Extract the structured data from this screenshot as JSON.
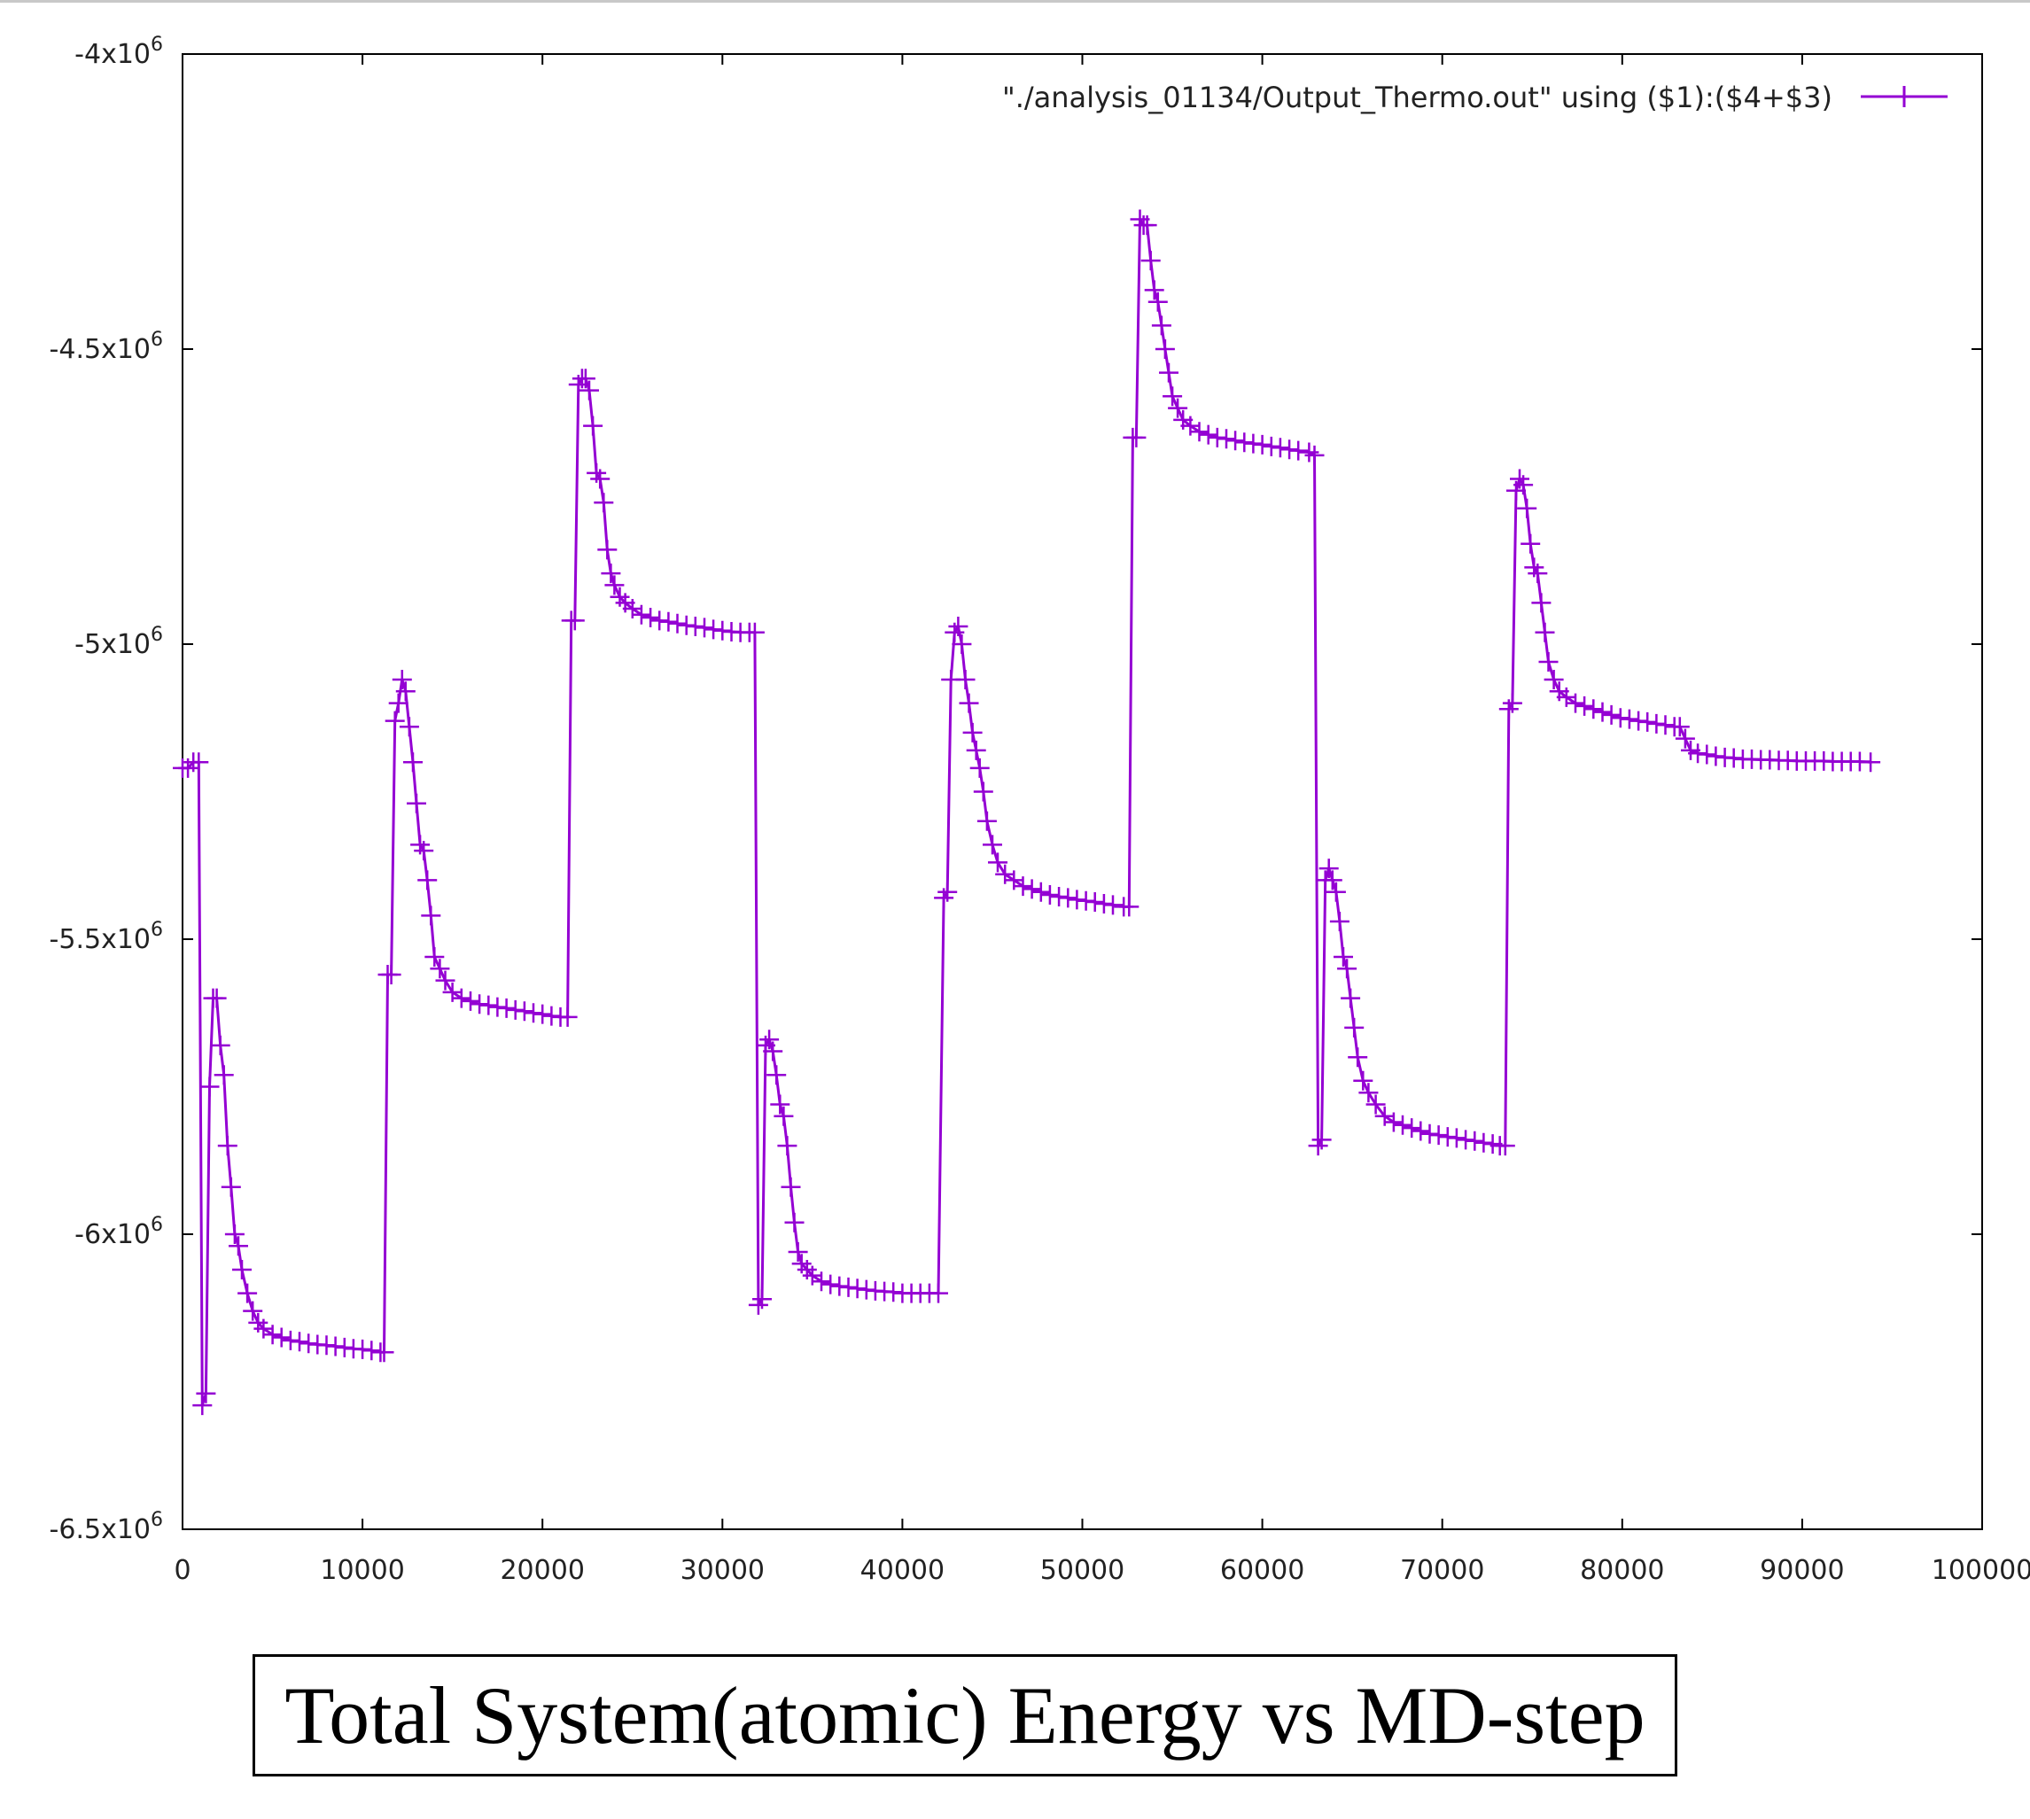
{
  "caption": "Total System(atomic) Energy vs MD-step",
  "chart_data": {
    "type": "line",
    "title": "",
    "xlabel": "",
    "ylabel": "",
    "xlim": [
      0,
      100000
    ],
    "ylim": [
      -6500000,
      -4000000
    ],
    "x_ticks": [
      0,
      10000,
      20000,
      30000,
      40000,
      50000,
      60000,
      70000,
      80000,
      90000,
      100000
    ],
    "x_tick_labels": [
      "0",
      "10000",
      "20000",
      "30000",
      "40000",
      "50000",
      "60000",
      "70000",
      "80000",
      "90000",
      "100000"
    ],
    "y_ticks": [
      -6500000,
      -6000000,
      -5500000,
      -5000000,
      -4500000,
      -4000000
    ],
    "y_tick_labels": [
      {
        "mantissa": "-6.5x10",
        "exp": "6"
      },
      {
        "mantissa": "-6x10",
        "exp": "6"
      },
      {
        "mantissa": "-5.5x10",
        "exp": "6"
      },
      {
        "mantissa": "-5x10",
        "exp": "6"
      },
      {
        "mantissa": "-4.5x10",
        "exp": "6"
      },
      {
        "mantissa": "-4x10",
        "exp": "6"
      }
    ],
    "grid": false,
    "legend_position": "top-right",
    "series": [
      {
        "name": "\"./analysis_01134/Output_Thermo.out\" using ($1):($4+$3)",
        "color": "#9400d3",
        "marker": "plus",
        "x": [
          0,
          300,
          600,
          900,
          1100,
          1300,
          1500,
          1700,
          1900,
          2100,
          2300,
          2500,
          2700,
          2900,
          3100,
          3300,
          3600,
          3900,
          4200,
          4500,
          5000,
          5500,
          6000,
          6500,
          7000,
          7500,
          8000,
          8500,
          9000,
          9500,
          10000,
          10500,
          11000,
          11200,
          11400,
          11600,
          11800,
          12000,
          12200,
          12400,
          12600,
          12800,
          13000,
          13200,
          13400,
          13600,
          13800,
          14000,
          14300,
          14600,
          15000,
          15500,
          16000,
          16500,
          17000,
          17500,
          18000,
          18500,
          19000,
          19500,
          20000,
          20500,
          21000,
          21400,
          21600,
          21800,
          22000,
          22200,
          22400,
          22600,
          22800,
          23000,
          23200,
          23400,
          23600,
          23800,
          24000,
          24300,
          24600,
          25000,
          25500,
          26000,
          26500,
          27000,
          27500,
          28000,
          28500,
          29000,
          29500,
          30000,
          30500,
          31000,
          31500,
          31800,
          32000,
          32200,
          32400,
          32600,
          32800,
          33000,
          33200,
          33400,
          33600,
          33800,
          34000,
          34200,
          34400,
          34700,
          35000,
          35500,
          36000,
          36500,
          37000,
          37500,
          38000,
          38500,
          39000,
          39500,
          40000,
          40500,
          41000,
          41500,
          42000,
          42300,
          42500,
          42700,
          42900,
          43100,
          43300,
          43500,
          43700,
          43900,
          44100,
          44300,
          44500,
          44700,
          45000,
          45300,
          45700,
          46200,
          46700,
          47200,
          47700,
          48200,
          48700,
          49200,
          49700,
          50200,
          50700,
          51200,
          51700,
          52300,
          52600,
          52800,
          53000,
          53200,
          53400,
          53600,
          53800,
          54000,
          54200,
          54400,
          54600,
          54800,
          55000,
          55300,
          55600,
          56000,
          56500,
          57000,
          57500,
          58000,
          58500,
          59000,
          59500,
          60000,
          60500,
          61000,
          61500,
          62000,
          62600,
          62900,
          63100,
          63300,
          63500,
          63700,
          63900,
          64100,
          64300,
          64500,
          64700,
          64900,
          65100,
          65300,
          65600,
          65900,
          66300,
          66800,
          67300,
          67800,
          68300,
          68800,
          69300,
          69800,
          70300,
          70800,
          71300,
          71800,
          72300,
          72800,
          73200,
          73500,
          73700,
          73900,
          74100,
          74300,
          74500,
          74700,
          74900,
          75100,
          75300,
          75500,
          75700,
          75900,
          76200,
          76500,
          76900,
          77400,
          77900,
          78400,
          78900,
          79400,
          79900,
          80400,
          80900,
          81400,
          81900,
          82400,
          82900,
          83200,
          83500,
          83800,
          84200,
          84700,
          85200,
          85700,
          86200,
          86700,
          87200,
          87700,
          88200,
          88700,
          89200,
          89700,
          90200,
          90700,
          91200,
          91700,
          92200,
          92700,
          93200,
          93800
        ],
        "y": [
          -5210000,
          -5210000,
          -5200000,
          -5200000,
          -6290000,
          -6270000,
          -5750000,
          -5600000,
          -5600000,
          -5680000,
          -5730000,
          -5850000,
          -5920000,
          -6000000,
          -6020000,
          -6060000,
          -6100000,
          -6130000,
          -6150000,
          -6160000,
          -6170000,
          -6175000,
          -6180000,
          -6182000,
          -6185000,
          -6187000,
          -6188000,
          -6190000,
          -6192000,
          -6194000,
          -6195000,
          -6197000,
          -6200000,
          -6200000,
          -5560000,
          -5560000,
          -5130000,
          -5100000,
          -5060000,
          -5080000,
          -5140000,
          -5200000,
          -5270000,
          -5340000,
          -5350000,
          -5400000,
          -5460000,
          -5530000,
          -5550000,
          -5570000,
          -5590000,
          -5600000,
          -5605000,
          -5610000,
          -5612000,
          -5615000,
          -5617000,
          -5620000,
          -5622000,
          -5625000,
          -5627000,
          -5630000,
          -5632000,
          -5632000,
          -4960000,
          -4960000,
          -4560000,
          -4550000,
          -4550000,
          -4570000,
          -4630000,
          -4710000,
          -4720000,
          -4760000,
          -4840000,
          -4880000,
          -4900000,
          -4920000,
          -4930000,
          -4940000,
          -4950000,
          -4955000,
          -4960000,
          -4962000,
          -4965000,
          -4968000,
          -4970000,
          -4972000,
          -4975000,
          -4977000,
          -4979000,
          -4980000,
          -4980000,
          -4980000,
          -6120000,
          -6110000,
          -5680000,
          -5670000,
          -5690000,
          -5730000,
          -5780000,
          -5800000,
          -5850000,
          -5920000,
          -5980000,
          -6030000,
          -6050000,
          -6060000,
          -6070000,
          -6080000,
          -6085000,
          -6088000,
          -6090000,
          -6092000,
          -6094000,
          -6096000,
          -6097000,
          -6098000,
          -6100000,
          -6100000,
          -6100000,
          -6100000,
          -6100000,
          -5430000,
          -5420000,
          -5060000,
          -4980000,
          -4970000,
          -5000000,
          -5060000,
          -5100000,
          -5150000,
          -5180000,
          -5210000,
          -5250000,
          -5300000,
          -5340000,
          -5370000,
          -5390000,
          -5400000,
          -5410000,
          -5415000,
          -5420000,
          -5425000,
          -5428000,
          -5430000,
          -5433000,
          -5435000,
          -5437000,
          -5440000,
          -5442000,
          -5445000,
          -5445000,
          -4650000,
          -4650000,
          -4280000,
          -4290000,
          -4290000,
          -4350000,
          -4400000,
          -4420000,
          -4460000,
          -4500000,
          -4540000,
          -4580000,
          -4600000,
          -4620000,
          -4630000,
          -4640000,
          -4645000,
          -4650000,
          -4652000,
          -4655000,
          -4658000,
          -4660000,
          -4662000,
          -4665000,
          -4667000,
          -4670000,
          -4672000,
          -4675000,
          -4680000,
          -5850000,
          -5840000,
          -5400000,
          -5380000,
          -5400000,
          -5420000,
          -5470000,
          -5530000,
          -5550000,
          -5600000,
          -5650000,
          -5700000,
          -5740000,
          -5760000,
          -5780000,
          -5800000,
          -5810000,
          -5815000,
          -5820000,
          -5825000,
          -5830000,
          -5832000,
          -5835000,
          -5837000,
          -5840000,
          -5842000,
          -5845000,
          -5847000,
          -5850000,
          -5850000,
          -5110000,
          -5100000,
          -4740000,
          -4720000,
          -4730000,
          -4770000,
          -4830000,
          -4870000,
          -4880000,
          -4930000,
          -4980000,
          -5030000,
          -5060000,
          -5080000,
          -5090000,
          -5100000,
          -5105000,
          -5110000,
          -5115000,
          -5120000,
          -5125000,
          -5127000,
          -5130000,
          -5132000,
          -5135000,
          -5137000,
          -5140000,
          -5140000,
          -5160000,
          -5180000,
          -5185000,
          -5187000,
          -5190000,
          -5192000,
          -5193000,
          -5195000,
          -5195000,
          -5196000,
          -5196000,
          -5197000,
          -5197000,
          -5198000,
          -5198000,
          -5198000,
          -5198000,
          -5199000,
          -5199000,
          -5199000,
          -5199000,
          -5200000
        ]
      }
    ]
  }
}
